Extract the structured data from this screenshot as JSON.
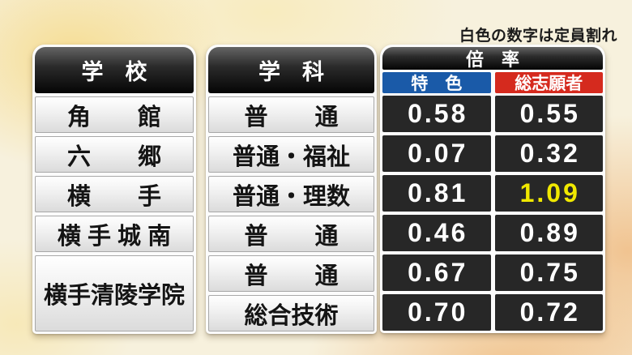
{
  "note": "白色の数字は定員割れ",
  "colors": {
    "tokushoku_bg": "#1a5aa8",
    "sougansha_bg": "#d52a1e",
    "highlight_number": "#f0e800"
  },
  "table": {
    "school_header": "学　校",
    "dept_header": "学　科",
    "rate_header": "倍　率",
    "tokushoku_header": "特　色",
    "sougansha_header": "総志願者",
    "schools": [
      {
        "name": "角　　館"
      },
      {
        "name": "六　　郷"
      },
      {
        "name": "横　　手"
      },
      {
        "name": "横 手 城 南"
      },
      {
        "name": "横手清陵学院"
      }
    ],
    "rows": [
      {
        "dept": "普　　通",
        "tokushoku": "0.58",
        "sougansha": "0.55"
      },
      {
        "dept": "普通・福祉",
        "tokushoku": "0.07",
        "sougansha": "0.32"
      },
      {
        "dept": "普通・理数",
        "tokushoku": "0.81",
        "sougansha": "1.09"
      },
      {
        "dept": "普　　通",
        "tokushoku": "0.46",
        "sougansha": "0.89"
      },
      {
        "dept": "普　　通",
        "tokushoku": "0.67",
        "sougansha": "0.75"
      },
      {
        "dept": "総合技術",
        "tokushoku": "0.70",
        "sougansha": "0.72"
      }
    ]
  },
  "chart_data": {
    "type": "table",
    "title": "倍率",
    "note": "白色の数字は定員割れ",
    "columns": [
      "学校",
      "学科",
      "倍率 特色",
      "倍率 総志願者"
    ],
    "rows": [
      [
        "角館",
        "普通",
        0.58,
        0.55
      ],
      [
        "六郷",
        "普通・福祉",
        0.07,
        0.32
      ],
      [
        "横手",
        "普通・理数",
        0.81,
        1.09
      ],
      [
        "横手城南",
        "普通",
        0.46,
        0.89
      ],
      [
        "横手清陵学院",
        "普通",
        0.67,
        0.75
      ],
      [
        "横手清陵学院",
        "総合技術",
        0.7,
        0.72
      ]
    ],
    "merged_cells": [
      {
        "column": "学校",
        "value": "横手清陵学院",
        "row_span": [
          4,
          5
        ]
      }
    ],
    "highlighted_cells": [
      {
        "row": 2,
        "column": "倍率 総志願者",
        "value": 1.09,
        "color": "#f0e800"
      }
    ],
    "header_colors": {
      "特色": "#1a5aa8",
      "総志願者": "#d52a1e"
    }
  }
}
